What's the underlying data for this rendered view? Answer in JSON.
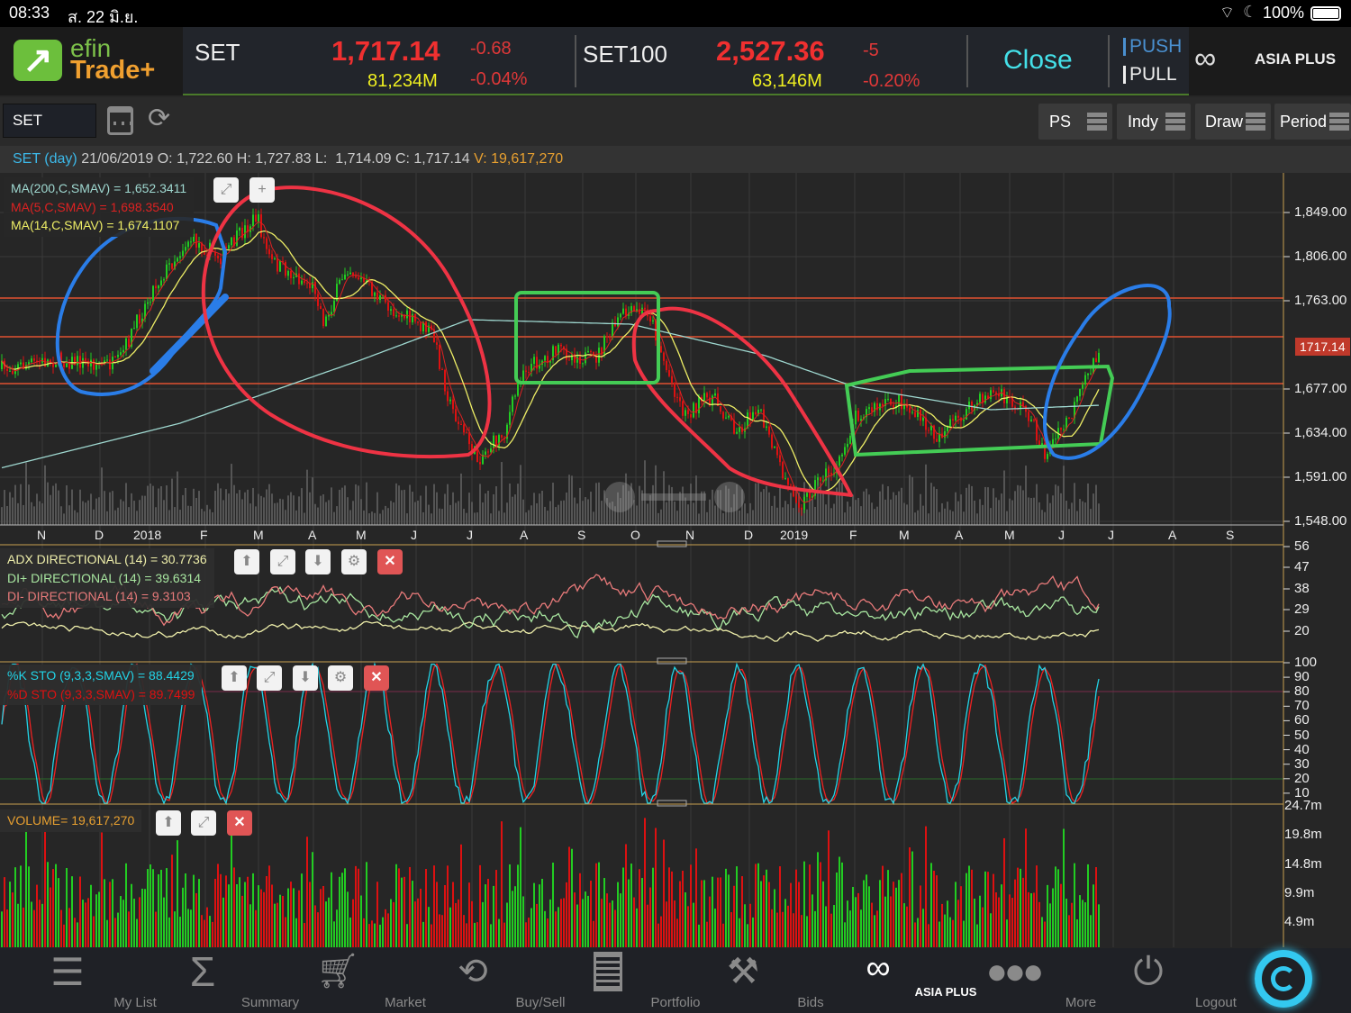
{
  "status_bar": {
    "time": "08:33",
    "date": "ส. 22 มิ.ย.",
    "battery": "100%"
  },
  "header": {
    "logo": {
      "top": "efin",
      "bottom": "Trade+"
    },
    "index1": {
      "name": "SET",
      "value": "1,717.14",
      "change": "-0.68",
      "volume": "81,234M",
      "pct": "-0.04%"
    },
    "index2": {
      "name": "SET100",
      "value": "2,527.36",
      "change": "-5",
      "volume": "63,146M",
      "pct": "-0.20%"
    },
    "market_status": "Close",
    "push": "PUSH",
    "pull": "PULL",
    "broker_logo": "ASIA PLUS"
  },
  "toolbar": {
    "symbol": "SET",
    "buttons": [
      "PS",
      "Indy",
      "Draw",
      "Period"
    ]
  },
  "info": {
    "symbol": "SET (day)",
    "date": "21/06/2019",
    "o_label": "O:",
    "o": "1,722.60",
    "h_label": "H:",
    "h": "1,727.83",
    "l_label": "L:",
    "l": "1,714.09",
    "c_label": "C:",
    "c": "1,717.14",
    "v_label": "V:",
    "v": "19,617,270"
  },
  "price_panel": {
    "legend": [
      "MA(200,C,SMAV) = 1,652.3411",
      "MA(5,C,SMAV) = 1,698.3540",
      "MA(14,C,SMAV) = 1,674.1107"
    ],
    "y_ticks": [
      "1,849.00",
      "1,806.00",
      "1,763.00",
      "1,677.00",
      "1,634.00",
      "1,591.00",
      "1,548.00"
    ],
    "last_price": "1717.14",
    "x_ticks": [
      "N",
      "D",
      "2018",
      "F",
      "M",
      "A",
      "M",
      "J",
      "J",
      "A",
      "S",
      "O",
      "N",
      "D",
      "2019",
      "F",
      "M",
      "A",
      "M",
      "J",
      "J",
      "A",
      "S"
    ]
  },
  "adx_panel": {
    "legend": [
      "ADX DIRECTIONAL (14) = 30.7736",
      "DI+ DIRECTIONAL (14) = 39.6314",
      "DI- DIRECTIONAL (14) = 9.3103"
    ],
    "y_ticks": [
      "56",
      "47",
      "38",
      "29",
      "20"
    ]
  },
  "sto_panel": {
    "legend": [
      "%K STO (9,3,3,SMAV) = 88.4429",
      "%D STO (9,3,3,SMAV) = 89.7499"
    ],
    "y_ticks": [
      "100",
      "90",
      "80",
      "70",
      "60",
      "50",
      "40",
      "30",
      "20",
      "10"
    ]
  },
  "volume_panel": {
    "legend": "VOLUME= 19,617,270",
    "y_ticks": [
      "24.7m",
      "19.8m",
      "14.8m",
      "9.9m",
      "4.9m"
    ]
  },
  "colors": {
    "up": "#22cc22",
    "down": "#dd1111",
    "ma200": "#9fd8d0",
    "ma5": "#dd2222",
    "ma14": "#eeee66",
    "k": "#22d3e6",
    "d": "#ee2222",
    "accent": "#33c8f0"
  },
  "nav": [
    {
      "label": "My List",
      "icon": "list-icon"
    },
    {
      "label": "Summary",
      "icon": "sigma-icon"
    },
    {
      "label": "Market",
      "icon": "cart-icon"
    },
    {
      "label": "Buy/Sell",
      "icon": "buysell-icon"
    },
    {
      "label": "Portfolio",
      "icon": "portfolio-icon"
    },
    {
      "label": "Bids",
      "icon": "gavel-icon"
    },
    {
      "label": "ASIA PLUS",
      "icon": "asiaplus-logo"
    },
    {
      "label": "More",
      "icon": "more-icon"
    },
    {
      "label": "Logout",
      "icon": "power-icon"
    }
  ]
}
